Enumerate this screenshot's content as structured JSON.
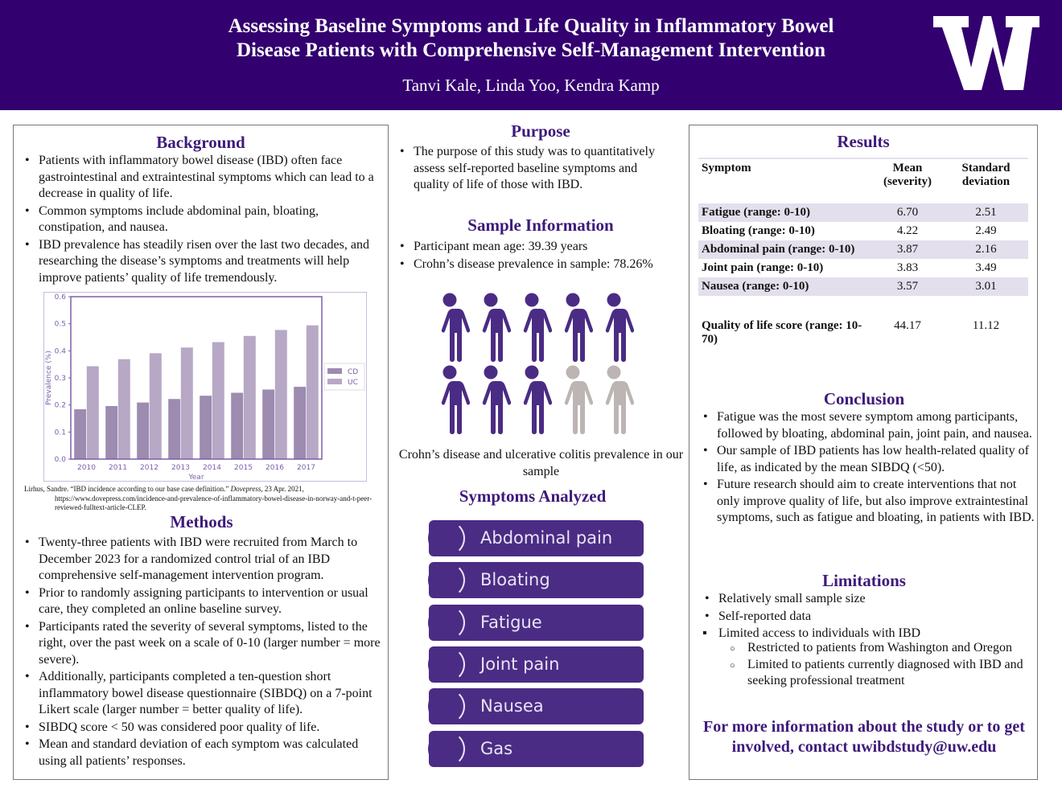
{
  "header": {
    "title_line1": "Assessing Baseline Symptoms and Life Quality in Inflammatory Bowel",
    "title_line2": "Disease Patients with Comprehensive Self-Management Intervention",
    "authors": "Tanvi Kale, Linda Yoo, Kendra Kamp",
    "logo": "W",
    "brand_color": "#33006f"
  },
  "background": {
    "heading": "Background",
    "bullets": [
      "Patients with inflammatory bowel disease (IBD) often face gastrointestinal and extraintestinal symptoms which can lead to a decrease in quality of life.",
      "Common symptoms include abdominal pain, bloating, constipation, and nausea.",
      "IBD prevalence has steadily risen over the last two decades, and researching the disease’s symptoms and treatments will help improve patients’ quality of life tremendously."
    ],
    "citation_a": "Lirhus, Sandre. “IBD incidence according to our base case definition.” ",
    "citation_b": "Dovepress",
    "citation_c": ", 23 Apr. 2021, https://www.dovepress.com/incidence-and-prevalence-of-inflammatory-bowel-disease-in-norway-and-t-peer-reviewed-fulltext-article-CLEP."
  },
  "chart_data": {
    "type": "bar",
    "categories": [
      "2010",
      "2011",
      "2012",
      "2013",
      "2014",
      "2015",
      "2016",
      "2017"
    ],
    "series": [
      {
        "name": "CD",
        "values": [
          0.185,
          0.197,
          0.21,
          0.223,
          0.235,
          0.246,
          0.258,
          0.268
        ],
        "color": "#9d8bb0"
      },
      {
        "name": "UC",
        "values": [
          0.344,
          0.37,
          0.392,
          0.413,
          0.433,
          0.456,
          0.478,
          0.495
        ],
        "color": "#b7a8c6"
      }
    ],
    "xlabel": "Year",
    "ylabel": "Prevalence (%)",
    "ylim": [
      0,
      0.6
    ],
    "yticks": [
      "0.0",
      "0.1",
      "0.2",
      "0.3",
      "0.4",
      "0.5",
      "0.6"
    ],
    "legend": "right",
    "grid": false
  },
  "methods": {
    "heading": "Methods",
    "bullets": [
      "Twenty-three patients with IBD were recruited from March to December 2023 for a randomized control trial of an IBD comprehensive self-management intervention program.",
      "Prior to randomly assigning participants to intervention or usual care, they completed an online baseline survey.",
      "Participants rated the severity of several symptoms, listed to the right, over the past week on a scale of 0-10 (larger number = more severe).",
      "Additionally, participants completed a ten-question short inflammatory bowel disease questionnaire (SIBDQ) on a 7-point Likert scale (larger number = better quality of life).",
      "SIBDQ score < 50 was considered poor quality of life.",
      "Mean and standard deviation of each symptom was calculated using all patients’ responses."
    ]
  },
  "purpose": {
    "heading": "Purpose",
    "bullets": [
      "The purpose of this study was to quantitatively assess self-reported baseline symptoms and quality of life of those with IBD."
    ]
  },
  "sample": {
    "heading": "Sample Information",
    "bullets": [
      "Participant mean age: 39.39 years",
      "Crohn’s disease prevalence in sample: 78.26%"
    ],
    "caption": "Crohn’s disease and ulcerative colitis prevalence in our sample",
    "people_total": 10,
    "people_highlighted": 8,
    "colors": {
      "cd": "#4b2c84",
      "uc": "#bdb4b4"
    }
  },
  "symptoms": {
    "heading": "Symptoms Analyzed",
    "items": [
      "Abdominal pain",
      "Bloating",
      "Fatigue",
      "Joint pain",
      "Nausea",
      "Gas"
    ]
  },
  "results": {
    "heading": "Results",
    "columns": [
      "Symptom",
      "Mean (severity)",
      "Standard deviation"
    ],
    "rows": [
      [
        "Fatigue (range: 0-10)",
        "6.70",
        "2.51"
      ],
      [
        "Bloating (range: 0-10)",
        "4.22",
        "2.49"
      ],
      [
        "Abdominal pain (range: 0-10)",
        "3.87",
        "2.16"
      ],
      [
        "Joint pain (range: 0-10)",
        "3.83",
        "3.49"
      ],
      [
        "Nausea (range: 0-10)",
        "3.57",
        "3.01"
      ],
      [
        "Quality of life score (range: 10-70)",
        "44.17",
        "11.12"
      ]
    ]
  },
  "conclusion": {
    "heading": "Conclusion",
    "bullets": [
      "Fatigue was the most severe symptom among participants, followed by bloating, abdominal pain, joint pain, and nausea.",
      "Our sample of IBD patients has low health-related quality of life, as indicated by the mean SIBDQ (<50).",
      "Future research should aim to create interventions that not only improve quality of life, but also improve extraintestinal symptoms, such as fatigue and bloating, in patients with IBD."
    ]
  },
  "limitations": {
    "heading": "Limitations",
    "bullets": [
      "Relatively small sample size",
      "Self-reported data",
      "Limited access to individuals with IBD"
    ],
    "sub": [
      "Restricted to patients from Washington and Oregon",
      "Limited to patients currently diagnosed with IBD and seeking professional treatment"
    ]
  },
  "contact": "For more information about the study or to get involved, contact uwibdstudy@uw.edu"
}
